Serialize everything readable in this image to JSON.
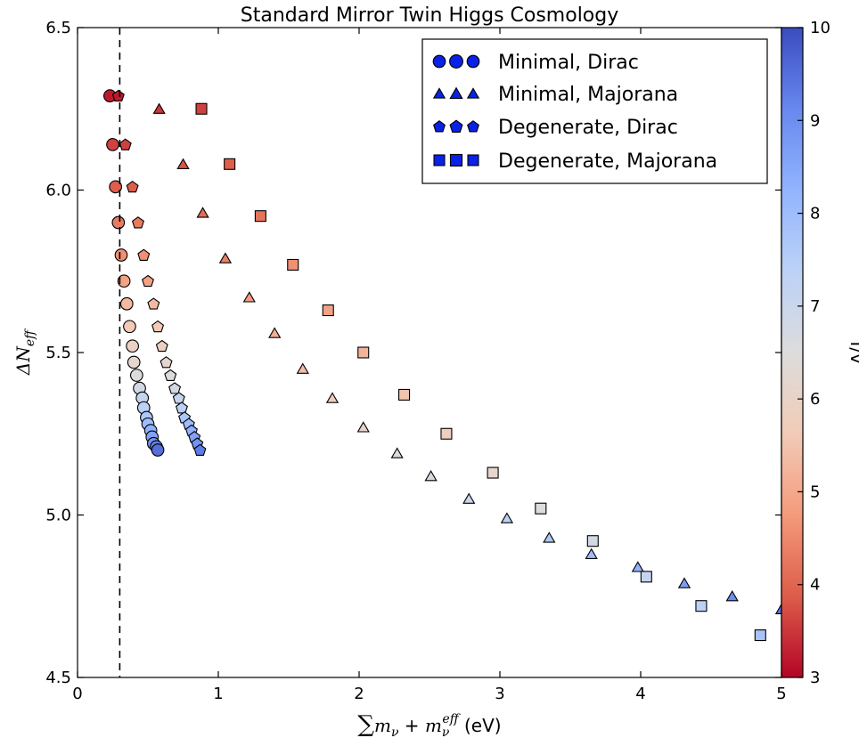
{
  "chart_data": {
    "type": "scatter",
    "title": "Standard Mirror Twin Higgs Cosmology",
    "xlabel": {
      "sum": "∑",
      "base": "m",
      "sub1": "ν",
      "plus": " + ",
      "base2": "m",
      "sub2": "ν",
      "sup2": "eff",
      "unit": " (eV)"
    },
    "ylabel": {
      "delta": "ΔN",
      "sub": "eff"
    },
    "xlim": [
      0,
      5
    ],
    "ylim": [
      4.5,
      6.5
    ],
    "xticks": [
      "0",
      "1",
      "2",
      "3",
      "4",
      "5"
    ],
    "yticks": [
      "4.5",
      "5.0",
      "5.5",
      "6.0",
      "6.5"
    ],
    "grid": false,
    "legend_position": "top-right",
    "vline_x": 0.3,
    "colorbar": {
      "label": "f/v",
      "range": [
        3,
        10
      ],
      "ticks": [
        "3",
        "4",
        "5",
        "6",
        "7",
        "8",
        "9",
        "10"
      ],
      "colormap": "coolwarm",
      "stops": [
        "#b40426",
        "#dc5d4a",
        "#f49a7b",
        "#f2cbb7",
        "#dddcdc",
        "#bcd2f7",
        "#92b4fe",
        "#6788ee",
        "#3b4cc0"
      ]
    },
    "series": [
      {
        "name": "Minimal, Dirac",
        "marker": "circle",
        "x": [
          0.23,
          0.25,
          0.27,
          0.29,
          0.31,
          0.33,
          0.35,
          0.37,
          0.39,
          0.4,
          0.42,
          0.44,
          0.46,
          0.47,
          0.49,
          0.5,
          0.52,
          0.53,
          0.54,
          0.56,
          0.57
        ],
        "y": [
          6.29,
          6.14,
          6.01,
          5.9,
          5.8,
          5.72,
          5.65,
          5.58,
          5.52,
          5.47,
          5.43,
          5.39,
          5.36,
          5.33,
          5.3,
          5.28,
          5.26,
          5.24,
          5.22,
          5.21,
          5.2
        ],
        "c": [
          3.2,
          3.6,
          3.9,
          4.3,
          4.6,
          4.9,
          5.3,
          5.6,
          5.9,
          6.2,
          6.5,
          6.8,
          7.1,
          7.4,
          7.7,
          8.0,
          8.3,
          8.6,
          8.9,
          9.2,
          9.5
        ]
      },
      {
        "name": "Minimal, Majorana",
        "marker": "triangle",
        "x": [
          0.58,
          0.75,
          0.89,
          1.05,
          1.22,
          1.4,
          1.6,
          1.81,
          2.03,
          2.27,
          2.51,
          2.78,
          3.05,
          3.35,
          3.65,
          3.98,
          4.31,
          4.65,
          5.0
        ],
        "y": [
          6.25,
          6.08,
          5.93,
          5.79,
          5.67,
          5.56,
          5.45,
          5.36,
          5.27,
          5.19,
          5.12,
          5.05,
          4.99,
          4.93,
          4.88,
          4.84,
          4.79,
          4.75,
          4.71
        ],
        "c": [
          3.5,
          3.8,
          4.1,
          4.4,
          4.8,
          5.1,
          5.4,
          5.7,
          6.1,
          6.4,
          6.7,
          7.0,
          7.4,
          7.7,
          8.0,
          8.3,
          8.7,
          9.0,
          9.4
        ]
      },
      {
        "name": "Degenerate, Dirac",
        "marker": "pentagon",
        "x": [
          0.29,
          0.34,
          0.39,
          0.43,
          0.47,
          0.5,
          0.54,
          0.57,
          0.6,
          0.63,
          0.66,
          0.69,
          0.72,
          0.74,
          0.76,
          0.79,
          0.81,
          0.83,
          0.85,
          0.87
        ],
        "y": [
          6.29,
          6.14,
          6.01,
          5.9,
          5.8,
          5.72,
          5.65,
          5.58,
          5.52,
          5.47,
          5.43,
          5.39,
          5.36,
          5.33,
          5.3,
          5.28,
          5.26,
          5.24,
          5.22,
          5.2
        ],
        "c": [
          3.2,
          3.6,
          3.9,
          4.3,
          4.6,
          4.9,
          5.3,
          5.6,
          5.9,
          6.2,
          6.5,
          6.8,
          7.1,
          7.4,
          7.7,
          8.0,
          8.3,
          8.6,
          8.9,
          9.3
        ]
      },
      {
        "name": "Degenerate, Majorana",
        "marker": "square",
        "x": [
          0.88,
          1.08,
          1.3,
          1.53,
          1.78,
          2.03,
          2.32,
          2.62,
          2.95,
          3.29,
          3.66,
          4.04,
          4.43,
          4.85
        ],
        "y": [
          6.25,
          6.08,
          5.92,
          5.77,
          5.63,
          5.5,
          5.37,
          5.25,
          5.13,
          5.02,
          4.92,
          4.81,
          4.72,
          4.63
        ],
        "c": [
          3.6,
          3.9,
          4.2,
          4.6,
          4.9,
          5.2,
          5.5,
          5.8,
          6.1,
          6.5,
          6.8,
          7.1,
          7.4,
          7.8
        ]
      }
    ]
  }
}
